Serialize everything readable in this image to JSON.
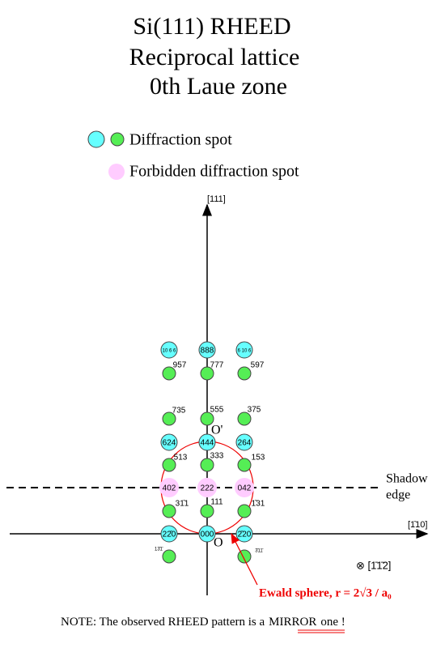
{
  "title": [
    "Si(111) RHEED",
    "Reciprocal lattice",
    "0th Laue zone"
  ],
  "legend": {
    "allowed": "Diffraction spot",
    "forbidden": "Forbidden diffraction spot"
  },
  "axes": {
    "vertical": "[111]",
    "horizontal": "[1̄10]",
    "beam": "⊗ [1̄1̄2]"
  },
  "shadow_edge": [
    "Shadow",
    "edge"
  ],
  "origins": {
    "o_prime": "O'",
    "o": "O"
  },
  "spots": [
    "10 6 6",
    "888",
    "6 10 6",
    "624",
    "444",
    "264",
    "22̄0",
    "000",
    "2̄20",
    "402",
    "222",
    "042",
    "957",
    "777",
    "597",
    "735",
    "555",
    "375",
    "513",
    "333",
    "153",
    "31̄1",
    "111",
    "1̄31",
    "13̄1̄",
    "3̄11̄"
  ],
  "ewald_label": "Ewald sphere, r = 2√3 / a₀",
  "note": [
    "NOTE: The observed RHEED pattern is a",
    "MIRROR",
    "one !"
  ]
}
